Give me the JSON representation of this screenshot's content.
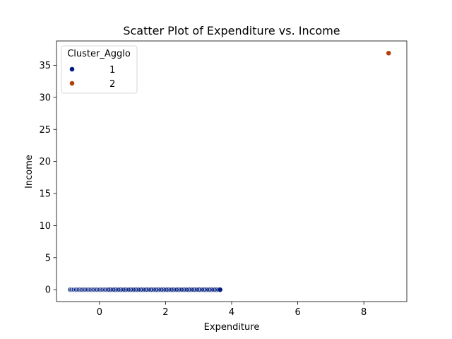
{
  "chart_data": {
    "type": "scatter",
    "title": "Scatter Plot of Expenditure vs. Income",
    "xlabel": "Expenditure",
    "ylabel": "Income",
    "xlim": [
      -1.3,
      9.3
    ],
    "ylim": [
      -1.85,
      38.8
    ],
    "xticks": [
      0,
      2,
      4,
      6,
      8
    ],
    "yticks": [
      0,
      5,
      10,
      15,
      20,
      25,
      30,
      35
    ],
    "grid": false,
    "legend": {
      "title": "Cluster_Agglo",
      "placement": "top-left"
    },
    "series": [
      {
        "name": "1",
        "color": "#001c7f",
        "x": [
          -0.88,
          -0.84,
          -0.8,
          -0.77,
          -0.73,
          -0.7,
          -0.66,
          -0.62,
          -0.58,
          -0.54,
          -0.5,
          -0.46,
          -0.42,
          -0.38,
          -0.34,
          -0.3,
          -0.26,
          -0.22,
          -0.18,
          -0.14,
          -0.1,
          -0.06,
          -0.02,
          0.02,
          0.06,
          0.1,
          0.14,
          0.18,
          0.22,
          0.26,
          0.3,
          0.35,
          0.4,
          0.45,
          0.5,
          0.55,
          0.6,
          0.65,
          0.7,
          0.75,
          0.8,
          0.85,
          0.9,
          0.95,
          1.0,
          1.05,
          1.1,
          1.15,
          1.2,
          1.25,
          1.3,
          1.35,
          1.4,
          1.45,
          1.5,
          1.55,
          1.6,
          1.65,
          1.7,
          1.75,
          1.8,
          1.85,
          1.9,
          1.95,
          2.0,
          2.05,
          2.1,
          2.15,
          2.2,
          2.25,
          2.3,
          2.35,
          2.4,
          2.45,
          2.5,
          2.55,
          2.6,
          2.65,
          2.7,
          2.75,
          2.8,
          2.85,
          2.9,
          2.95,
          3.0,
          3.05,
          3.1,
          3.15,
          3.2,
          3.25,
          3.3,
          3.35,
          3.4,
          3.45,
          3.5,
          3.55,
          3.6,
          3.65
        ],
        "y": [
          0,
          0,
          0,
          0,
          0,
          0,
          0,
          0,
          0,
          0,
          0,
          0,
          0,
          0,
          0,
          0,
          0,
          0,
          0,
          0,
          0,
          0,
          0,
          0,
          0,
          0,
          0,
          0,
          0,
          0,
          0,
          0,
          0,
          0,
          0,
          0,
          0,
          0,
          0,
          0,
          0,
          0,
          0,
          0,
          0,
          0,
          0,
          0,
          0,
          0,
          0,
          0,
          0,
          0,
          0,
          0,
          0,
          0,
          0,
          0,
          0,
          0,
          0,
          0,
          0,
          0,
          0,
          0,
          0,
          0,
          0,
          0,
          0,
          0,
          0,
          0,
          0,
          0,
          0,
          0,
          0,
          0,
          0,
          0,
          0,
          0,
          0,
          0,
          0,
          0,
          0,
          0,
          0,
          0,
          0,
          0,
          0,
          0
        ]
      },
      {
        "name": "2",
        "color": "#b1400d",
        "x": [
          8.75
        ],
        "y": [
          36.9
        ]
      }
    ]
  }
}
